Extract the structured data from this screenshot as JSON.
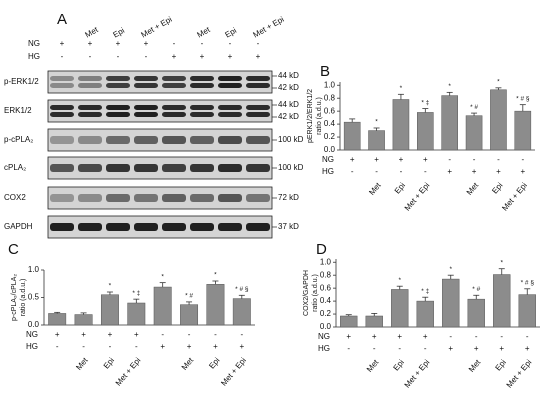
{
  "blot": {
    "panel_label": "A",
    "columns": [
      null,
      "Met",
      "Epi",
      "Met + Epi",
      null,
      "Met",
      "Epi",
      "Met + Epi"
    ],
    "condition_rows": [
      {
        "name": "NG",
        "values": [
          "+",
          "+",
          "+",
          "+",
          "-",
          "-",
          "-",
          "-"
        ]
      },
      {
        "name": "HG",
        "values": [
          "-",
          "-",
          "-",
          "-",
          "+",
          "+",
          "+",
          "+"
        ]
      }
    ],
    "rows": [
      {
        "label": "p-ERK1/2",
        "markers": [
          "44 kD",
          "42 kD"
        ]
      },
      {
        "label": "ERK1/2",
        "markers": [
          "44 kD",
          "42 kD"
        ]
      },
      {
        "label": "p-cPLA₂",
        "markers": [
          "100 kD"
        ]
      },
      {
        "label": "cPLA₂",
        "markers": [
          "100 kD"
        ]
      },
      {
        "label": "COX2",
        "markers": [
          "72 kD"
        ]
      },
      {
        "label": "GAPDH",
        "markers": [
          "37 kD"
        ]
      }
    ]
  },
  "chart_data": [
    {
      "type": "bar",
      "panel_label": "B",
      "ylabel": [
        "pERK1/2/ERK1/2",
        "ratio (a.d.u.)"
      ],
      "categories": [
        null,
        "Met",
        "Epi",
        "Met + Epi",
        null,
        "Met",
        "Epi",
        "Met + Epi"
      ],
      "condition_rows": [
        {
          "name": "NG",
          "values": [
            "+",
            "+",
            "+",
            "+",
            "-",
            "-",
            "-",
            "-"
          ]
        },
        {
          "name": "HG",
          "values": [
            "-",
            "-",
            "-",
            "-",
            "+",
            "+",
            "+",
            "+"
          ]
        }
      ],
      "values": [
        0.43,
        0.3,
        0.78,
        0.58,
        0.84,
        0.53,
        0.93,
        0.6
      ],
      "errors": [
        0.05,
        0.04,
        0.08,
        0.06,
        0.05,
        0.04,
        0.03,
        0.1
      ],
      "annotations": [
        null,
        "*",
        "*",
        "* ‡",
        "*",
        "* #",
        "*",
        "* # §"
      ],
      "color": "#8c8c8c",
      "ylim": [
        0,
        1.05
      ],
      "yticks": [
        {
          "value": 0,
          "label": "0.0"
        },
        0.2,
        0.4,
        0.6,
        0.8,
        {
          "value": 1,
          "label": "1.0"
        }
      ]
    },
    {
      "type": "bar",
      "panel_label": "C",
      "ylabel": [
        "p-cPLA₂/cPLA₂",
        "ratio (a.d.u.)"
      ],
      "categories": [
        null,
        "Met",
        "Epi",
        "Met + Epi",
        null,
        "Met",
        "Epi",
        "Met + Epi"
      ],
      "condition_rows": [
        {
          "name": "NG",
          "values": [
            "+",
            "+",
            "+",
            "+",
            "-",
            "-",
            "-",
            "-"
          ]
        },
        {
          "name": "HG",
          "values": [
            "-",
            "-",
            "-",
            "-",
            "+",
            "+",
            "+",
            "+"
          ]
        }
      ],
      "values": [
        0.21,
        0.19,
        0.55,
        0.4,
        0.69,
        0.37,
        0.74,
        0.48
      ],
      "errors": [
        0.02,
        0.03,
        0.05,
        0.07,
        0.08,
        0.05,
        0.06,
        0.06
      ],
      "annotations": [
        null,
        null,
        "*",
        "* ‡",
        "*",
        "* #",
        "*",
        "* # §"
      ],
      "color": "#8c8c8c",
      "ylim": [
        0,
        1.0
      ],
      "yticks": [
        {
          "value": 0,
          "label": "0.0"
        },
        0.5,
        {
          "value": 1,
          "label": "1.0"
        }
      ]
    },
    {
      "type": "bar",
      "panel_label": "D",
      "ylabel": [
        "COX2/GAPDH",
        "ratio (a.d.u.)"
      ],
      "categories": [
        null,
        "Met",
        "Epi",
        "Met + Epi",
        null,
        "Met",
        "Epi",
        "Met + Epi"
      ],
      "condition_rows": [
        {
          "name": "NG",
          "values": [
            "+",
            "+",
            "+",
            "+",
            "-",
            "-",
            "-",
            "-"
          ]
        },
        {
          "name": "HG",
          "values": [
            "-",
            "-",
            "-",
            "-",
            "+",
            "+",
            "+",
            "+"
          ]
        }
      ],
      "values": [
        0.17,
        0.17,
        0.58,
        0.4,
        0.74,
        0.43,
        0.81,
        0.5
      ],
      "errors": [
        0.02,
        0.04,
        0.05,
        0.06,
        0.06,
        0.06,
        0.09,
        0.09
      ],
      "annotations": [
        null,
        null,
        "*",
        "* ‡",
        "*",
        "* #",
        "*",
        "* # §"
      ],
      "color": "#8c8c8c",
      "ylim": [
        0,
        1.05
      ],
      "yticks": [
        {
          "value": 0,
          "label": "0.0"
        },
        0.2,
        0.4,
        0.6,
        0.8,
        {
          "value": 1,
          "label": "1.0"
        }
      ]
    }
  ]
}
